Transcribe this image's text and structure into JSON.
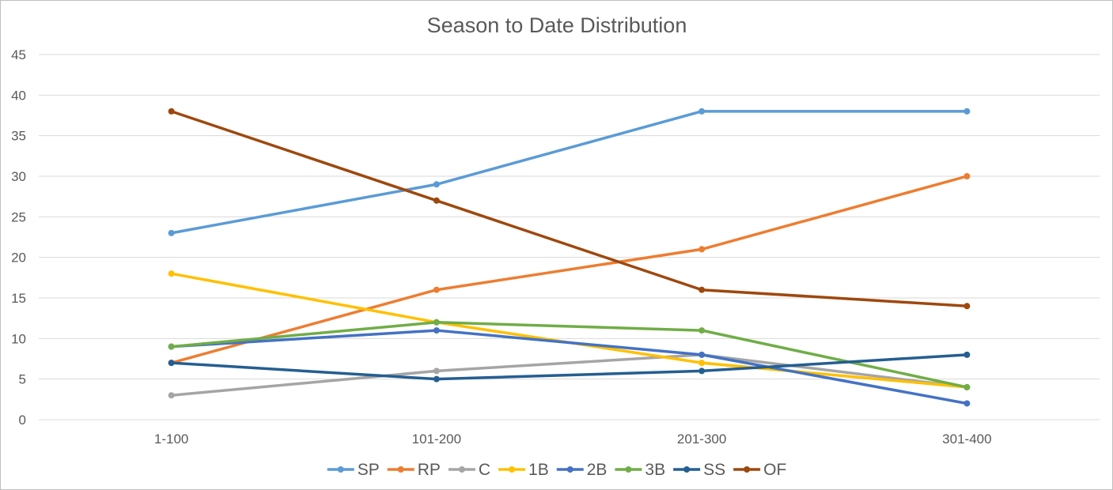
{
  "chart_data": {
    "type": "line",
    "title": "Season to Date Distribution",
    "categories": [
      "1-100",
      "101-200",
      "201-300",
      "301-400"
    ],
    "ylim": [
      0,
      45
    ],
    "yticks": [
      0,
      5,
      10,
      15,
      20,
      25,
      30,
      35,
      40,
      45
    ],
    "grid": true,
    "legend_position": "bottom",
    "series": [
      {
        "name": "SP",
        "color": "#5b9bd5",
        "values": [
          23,
          29,
          38,
          38
        ]
      },
      {
        "name": "RP",
        "color": "#ed7d31",
        "values": [
          7,
          16,
          21,
          30
        ]
      },
      {
        "name": "C",
        "color": "#a5a5a5",
        "values": [
          3,
          6,
          8,
          4
        ]
      },
      {
        "name": "1B",
        "color": "#ffc000",
        "values": [
          18,
          12,
          7,
          4
        ]
      },
      {
        "name": "2B",
        "color": "#4472c4",
        "values": [
          9,
          11,
          8,
          2
        ]
      },
      {
        "name": "3B",
        "color": "#70ad47",
        "values": [
          9,
          12,
          11,
          4
        ]
      },
      {
        "name": "SS",
        "color": "#255e91",
        "values": [
          7,
          5,
          6,
          8
        ]
      },
      {
        "name": "OF",
        "color": "#9e480e",
        "values": [
          38,
          27,
          16,
          14
        ]
      }
    ]
  }
}
